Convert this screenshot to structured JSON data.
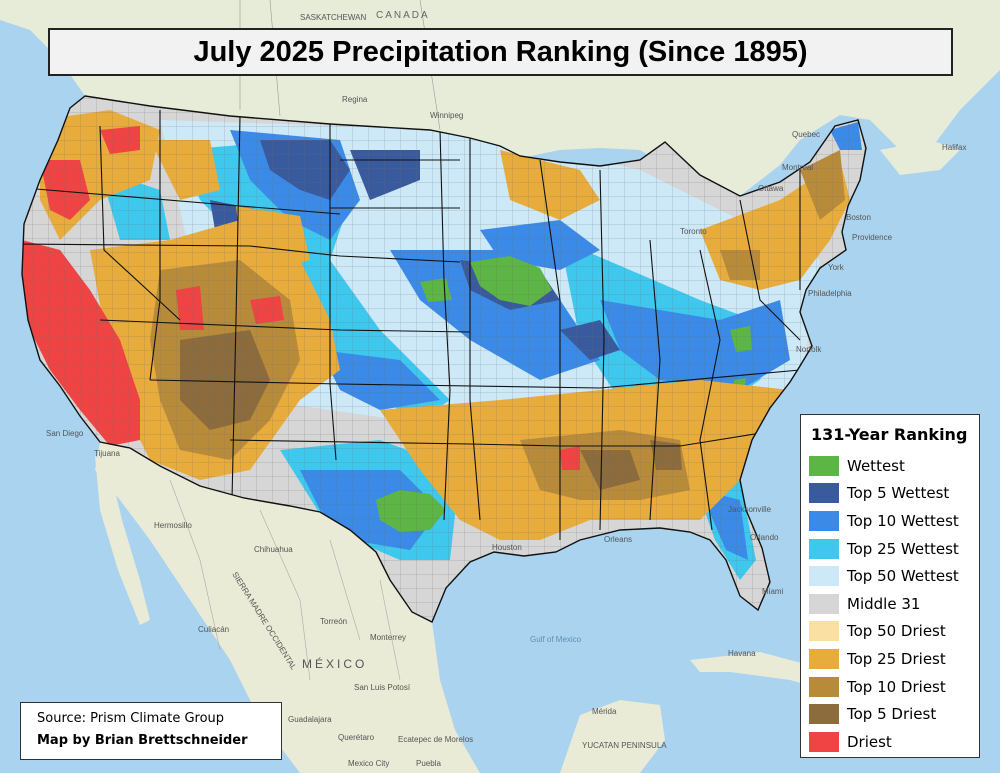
{
  "title": "July 2025 Precipitation Ranking (Since 1895)",
  "legend": {
    "title": "131-Year Ranking",
    "items": [
      {
        "label": "Wettest",
        "color": "#5db545"
      },
      {
        "label": "Top 5 Wettest",
        "color": "#3a5a9e"
      },
      {
        "label": "Top 10 Wettest",
        "color": "#3b8ae8"
      },
      {
        "label": "Top 25 Wettest",
        "color": "#3fc8ee"
      },
      {
        "label": "Top 50 Wettest",
        "color": "#cde9f8"
      },
      {
        "label": "Middle 31",
        "color": "#d6d6d6"
      },
      {
        "label": "Top 50 Driest",
        "color": "#fbe0a4"
      },
      {
        "label": "Top 25 Driest",
        "color": "#e8ac3c"
      },
      {
        "label": "Top 10 Driest",
        "color": "#b88b3b"
      },
      {
        "label": "Top 5 Driest",
        "color": "#8c6b3c"
      },
      {
        "label": "Driest",
        "color": "#f04444"
      }
    ]
  },
  "credit": {
    "source": "Source: Prism Climate Group",
    "author": "Map by Brian Brettschneider"
  },
  "basemap_labels": {
    "canada": "CANADA",
    "saskatchewan": "SASKATCHEWAN",
    "regina": "Regina",
    "winnipeg": "Winnipeg",
    "montreal": "Montreal",
    "ottawa": "Ottawa",
    "quebec": "Quebec",
    "toronto": "Toronto",
    "halifax": "Halifax",
    "mexico": "MÉXICO",
    "hermosillo": "Hermosillo",
    "chihuahua": "Chihuahua",
    "culiacan": "Culiacán",
    "torreon": "Torreón",
    "monterrey": "Monterrey",
    "sierra": "SIERRA MADRE OCCIDENTAL",
    "san_luis": "San Luis Potosí",
    "guadalajara": "Guadalajara",
    "queretaro": "Querétaro",
    "ecatepec": "Ecatepec de Morelos",
    "mexico_city": "Mexico City",
    "puebla": "Puebla",
    "merida": "Mérida",
    "yucatan": "YUCATAN PENINSULA",
    "gulf": "Gulf of Mexico",
    "havana": "Havana",
    "tijuana": "Tijuana",
    "san_diego": "San Diego",
    "houston": "Houston",
    "orleans": "Orleans",
    "jacksonville": "Jacksonville",
    "orlando": "Orlando",
    "miami": "Miami",
    "norfolk": "Norfolk",
    "philadelphia": "Philadelphia",
    "york": "York",
    "boston": "Boston",
    "providence": "Providence"
  }
}
